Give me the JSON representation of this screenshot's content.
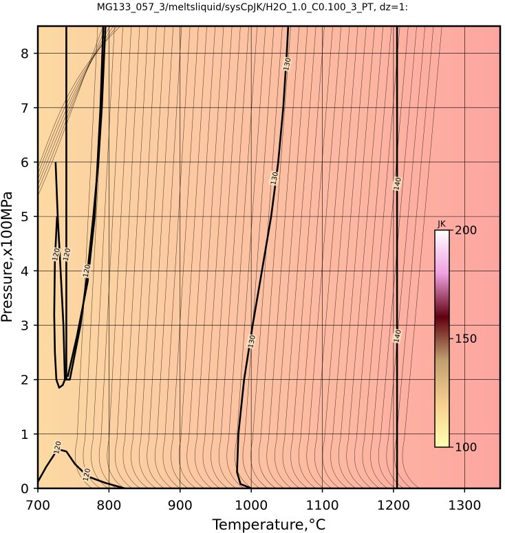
{
  "chart_data": {
    "type": "contour",
    "title": "MG133_057_3/meltsliquid/sysCpJK/H2O_1.0_C0.100_3_PT, dz=1:",
    "xlabel": "Temperature,°C",
    "ylabel": "Pressure,x100MPa",
    "xlim": [
      700,
      1350
    ],
    "ylim": [
      0,
      8.5
    ],
    "x_ticks": [
      "700",
      "800",
      "900",
      "1000",
      "1100",
      "1200",
      "1300"
    ],
    "y_ticks": [
      "0",
      "1",
      "2",
      "3",
      "4",
      "5",
      "6",
      "7",
      "8"
    ],
    "grid": true,
    "colorbar": {
      "unit": "JK",
      "min": 100,
      "max": 200,
      "tick_labels": [
        "100",
        "150",
        "200"
      ],
      "colors": [
        "#ffffb0",
        "#f8ce90",
        "#c0a070",
        "#600010",
        "#f0a0e0",
        "#ffffff"
      ]
    },
    "background_gradient": {
      "low_T_color": "#fcd9a2",
      "high_T_color": "#fda6a1"
    },
    "major_contours": [
      {
        "level": 120,
        "label": "120",
        "segments": [
          [
            [
              740,
              8.5
            ],
            [
              740,
              2.0
            ]
          ],
          [
            [
              795,
              8.5
            ],
            [
              790,
              7.0
            ],
            [
              785,
              6.0
            ],
            [
              778,
              5.0
            ],
            [
              770,
              4.0
            ],
            [
              760,
              3.0
            ],
            [
              745,
              2.0
            ],
            [
              738,
              2.0
            ],
            [
              736,
              3.0
            ],
            [
              732,
              4.0
            ],
            [
              728,
              5.0
            ],
            [
              725,
              6.0
            ]
          ],
          [
            [
              792,
              8.5
            ],
            [
              788,
              7.0
            ],
            [
              780,
              5.0
            ],
            [
              770,
              3.8
            ],
            [
              755,
              2.8
            ],
            [
              742,
              2.05
            ]
          ],
          [
            [
              738,
              2.0
            ],
            [
              735,
              1.9
            ],
            [
              730,
              1.85
            ],
            [
              726,
              2.0
            ],
            [
              724,
              2.5
            ],
            [
              723,
              3.2
            ],
            [
              724,
              4.2
            ],
            [
              727,
              5.0
            ]
          ],
          [
            [
              700,
              0.12
            ],
            [
              712,
              0.4
            ],
            [
              728,
              0.72
            ],
            [
              740,
              0.68
            ],
            [
              752,
              0.45
            ],
            [
              770,
              0.22
            ],
            [
              795,
              0.1
            ],
            [
              822,
              0.0
            ]
          ]
        ],
        "label_positions": [
          [
            725,
            4.3
          ],
          [
            740,
            4.3
          ],
          [
            768,
            4.0
          ],
          [
            727,
            0.75
          ],
          [
            768,
            0.25
          ]
        ]
      },
      {
        "level": 130,
        "label": "130",
        "segments": [
          [
            [
              1052,
              8.5
            ],
            [
              1050,
              8.0
            ],
            [
              1045,
              7.0
            ],
            [
              1038,
              6.0
            ],
            [
              1028,
              5.0
            ],
            [
              1015,
              4.0
            ],
            [
              1002,
              3.0
            ],
            [
              990,
              2.0
            ],
            [
              982,
              1.0
            ],
            [
              980,
              0.3
            ],
            [
              985,
              0.08
            ],
            [
              1000,
              0.0
            ]
          ]
        ],
        "label_positions": [
          [
            1050,
            7.8
          ],
          [
            1032,
            5.7
          ],
          [
            1000,
            2.7
          ]
        ]
      },
      {
        "level": 140,
        "label": "140",
        "segments": [
          [
            [
              1205,
              8.5
            ],
            [
              1205,
              0.0
            ]
          ]
        ],
        "label_positions": [
          [
            1205,
            5.6
          ],
          [
            1205,
            2.8
          ]
        ]
      }
    ]
  }
}
